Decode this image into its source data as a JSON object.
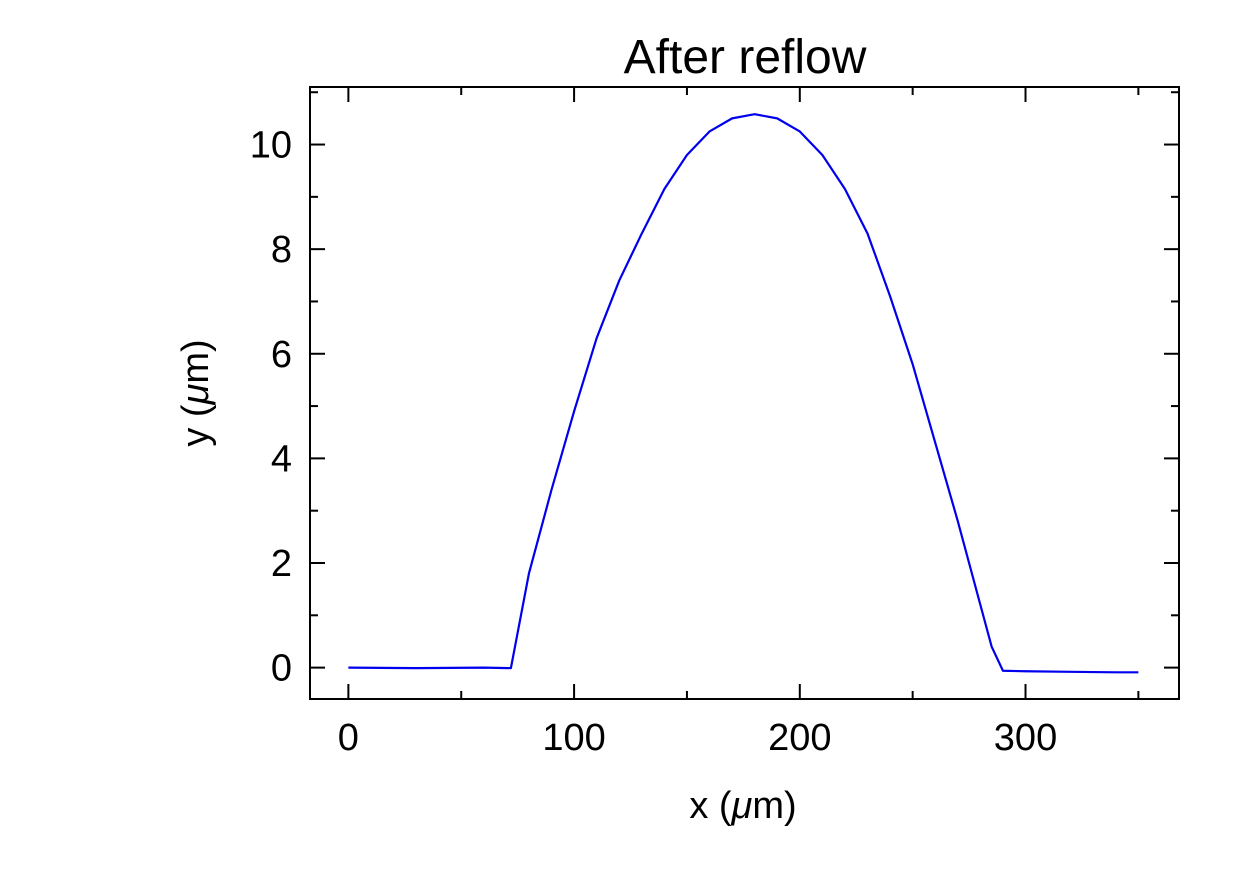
{
  "chart_data": {
    "type": "line",
    "title": "After reflow",
    "xlabel_prefix": "x (",
    "ylabel_prefix": "y (",
    "unit_mu": "μ",
    "unit_m": "m)",
    "xlim": [
      -17,
      368
    ],
    "ylim": [
      -0.6,
      11.1
    ],
    "x_ticks": [
      0,
      100,
      200,
      300
    ],
    "x_tick_labels": [
      "0",
      "100",
      "200",
      "300"
    ],
    "x_minor_ticks": [
      50,
      150,
      250,
      350
    ],
    "y_ticks": [
      0,
      2,
      4,
      6,
      8,
      10
    ],
    "y_tick_labels": [
      "0",
      "2",
      "4",
      "6",
      "8",
      "10"
    ],
    "y_minor_ticks": [
      1,
      3,
      5,
      7,
      9,
      11
    ],
    "grid": false,
    "line_color": "#0000ee",
    "series": [
      {
        "x": [
          0,
          30,
          60,
          72,
          80,
          90,
          100,
          110,
          120,
          130,
          140,
          150,
          160,
          170,
          180,
          190,
          200,
          210,
          220,
          230,
          240,
          250,
          260,
          270,
          280,
          285,
          290,
          300,
          320,
          340,
          350
        ],
        "y": [
          0,
          -0.01,
          0,
          -0.01,
          1.8,
          3.4,
          4.9,
          6.3,
          7.4,
          8.3,
          9.15,
          9.8,
          10.25,
          10.5,
          10.58,
          10.5,
          10.25,
          9.8,
          9.15,
          8.3,
          7.1,
          5.8,
          4.3,
          2.8,
          1.2,
          0.4,
          -0.06,
          -0.07,
          -0.08,
          -0.09,
          -0.09
        ]
      }
    ]
  }
}
